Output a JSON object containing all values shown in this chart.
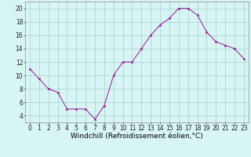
{
  "x": [
    0,
    1,
    2,
    3,
    4,
    5,
    6,
    7,
    8,
    9,
    10,
    11,
    12,
    13,
    14,
    15,
    16,
    17,
    18,
    19,
    20,
    21,
    22,
    23
  ],
  "y": [
    11,
    9.5,
    8,
    7.5,
    5,
    5,
    5,
    3.5,
    5.5,
    10,
    12,
    12,
    14,
    16,
    17.5,
    18.5,
    20,
    20,
    19,
    16.5,
    15,
    14.5,
    14,
    12.5
  ],
  "line_color": "#993399",
  "marker_color": "#993399",
  "bg_color": "#d8f5f5",
  "grid_color": "#aacccc",
  "title": "Windchill (Refroidissement éolien,°C)",
  "ylim": [
    3,
    21
  ],
  "yticks": [
    4,
    6,
    8,
    10,
    12,
    14,
    16,
    18,
    20
  ],
  "xticks": [
    0,
    1,
    2,
    3,
    4,
    5,
    6,
    7,
    8,
    9,
    10,
    11,
    12,
    13,
    14,
    15,
    16,
    17,
    18,
    19,
    20,
    21,
    22,
    23
  ],
  "tick_fontsize": 5.5,
  "xlabel_fontsize": 6.5
}
